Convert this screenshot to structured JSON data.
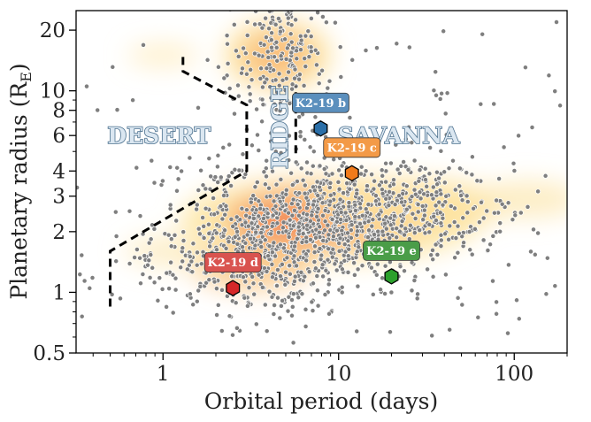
{
  "chart_data": {
    "type": "scatter",
    "title": "",
    "xlabel": "Orbital period (days)",
    "ylabel": "Planetary radius (R_E)",
    "ylabel_main": "Planetary radius (R",
    "ylabel_sub": "E",
    "ylabel_close": ")",
    "x_scale": "log",
    "y_scale": "log",
    "xlim": [
      0.32,
      200
    ],
    "ylim": [
      0.5,
      25
    ],
    "x_ticks": [
      {
        "value": 1,
        "label": "1"
      },
      {
        "value": 10,
        "label": "10"
      },
      {
        "value": 100,
        "label": "100"
      }
    ],
    "y_ticks": [
      {
        "value": 0.5,
        "label": "0.5"
      },
      {
        "value": 1,
        "label": "1"
      },
      {
        "value": 2,
        "label": "2"
      },
      {
        "value": 3,
        "label": "3"
      },
      {
        "value": 4,
        "label": "4"
      },
      {
        "value": 6,
        "label": "6"
      },
      {
        "value": 8,
        "label": "8"
      },
      {
        "value": 10,
        "label": "10"
      },
      {
        "value": 20,
        "label": "20"
      }
    ],
    "regions": [
      {
        "label": "DESERT",
        "x": 0.95,
        "y": 6.0
      },
      {
        "label": "RIDGE",
        "x": 4.6,
        "y": 6.6,
        "vertical": true
      },
      {
        "label": "SAVANNA",
        "x": 22,
        "y": 6.0
      }
    ],
    "boundary_line": [
      {
        "x": 0.5,
        "y": 0.85
      },
      {
        "x": 0.5,
        "y": 1.6
      },
      {
        "x": 3.0,
        "y": 4.0
      },
      {
        "x": 3.0,
        "y": 8.5
      },
      {
        "x": 1.3,
        "y": 12.5
      },
      {
        "x": 1.3,
        "y": 15.5
      }
    ],
    "ridge_segment": [
      {
        "x": 5.7,
        "y": 4.9
      },
      {
        "x": 5.7,
        "y": 10.5
      }
    ],
    "planets": [
      {
        "name": "K2-19 b",
        "period": 7.9,
        "radius": 6.5,
        "color": "#2b6fa8",
        "label_color": "#5b8fbd"
      },
      {
        "name": "K2-19 c",
        "period": 11.9,
        "radius": 3.9,
        "color": "#f07b1a",
        "label_color": "#f39a47"
      },
      {
        "name": "K2-19 d",
        "period": 2.5,
        "radius": 1.05,
        "color": "#d62728",
        "label_color": "#d9534f"
      },
      {
        "name": "K2-19 e",
        "period": 20,
        "radius": 1.2,
        "color": "#2ca02c",
        "label_color": "#4a9d48"
      }
    ],
    "population_clusters": [
      {
        "x": 4.6,
        "y": 15,
        "sx": 0.14,
        "sy": 0.2,
        "w": 0.12
      },
      {
        "x": 9,
        "y": 2.3,
        "sx": 0.42,
        "sy": 0.16,
        "w": 0.5
      },
      {
        "x": 3.5,
        "y": 1.4,
        "sx": 0.3,
        "sy": 0.14,
        "w": 0.25
      },
      {
        "x": 20,
        "y": 2.6,
        "sx": 0.35,
        "sy": 0.12,
        "w": 0.13
      }
    ],
    "grid": false,
    "legend": "none"
  }
}
